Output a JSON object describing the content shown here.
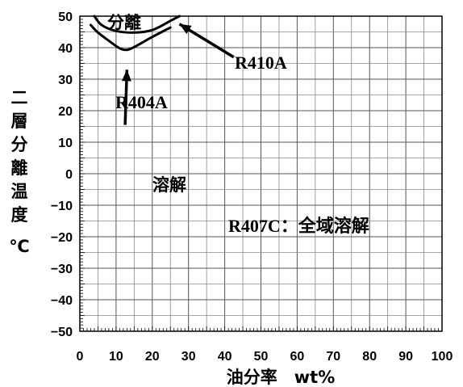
{
  "chart_data": {
    "type": "line",
    "xlabel": "油分率　wt%",
    "ylabel": [
      "二",
      "層",
      "分",
      "離",
      "温",
      "度",
      "℃"
    ],
    "xlim": [
      0,
      100
    ],
    "ylim": [
      -50,
      50
    ],
    "x_ticks": [
      "0",
      "10",
      "20",
      "30",
      "40",
      "50",
      "60",
      "70",
      "80",
      "90",
      "100"
    ],
    "y_ticks": [
      "50",
      "40",
      "30",
      "20",
      "10",
      "0",
      "−10",
      "−20",
      "−30",
      "−40",
      "−50"
    ],
    "grid": true,
    "series": [
      {
        "name": "R410A",
        "x": [
          4,
          6,
          10,
          15,
          20,
          25,
          27.5
        ],
        "y": [
          50,
          47.2,
          45.3,
          44.8,
          45.6,
          48.5,
          50
        ]
      },
      {
        "name": "R404A",
        "x": [
          3,
          5,
          8,
          11,
          13,
          15,
          20,
          25
        ],
        "y": [
          47.2,
          44.8,
          42.2,
          39.8,
          39.3,
          40.2,
          43.4,
          46.4
        ]
      }
    ],
    "annotations": {
      "separation": "分離",
      "r410a": "R410A",
      "r404a": "R404A",
      "dissolution": "溶解",
      "r407c": "R407C：全域溶解"
    }
  }
}
